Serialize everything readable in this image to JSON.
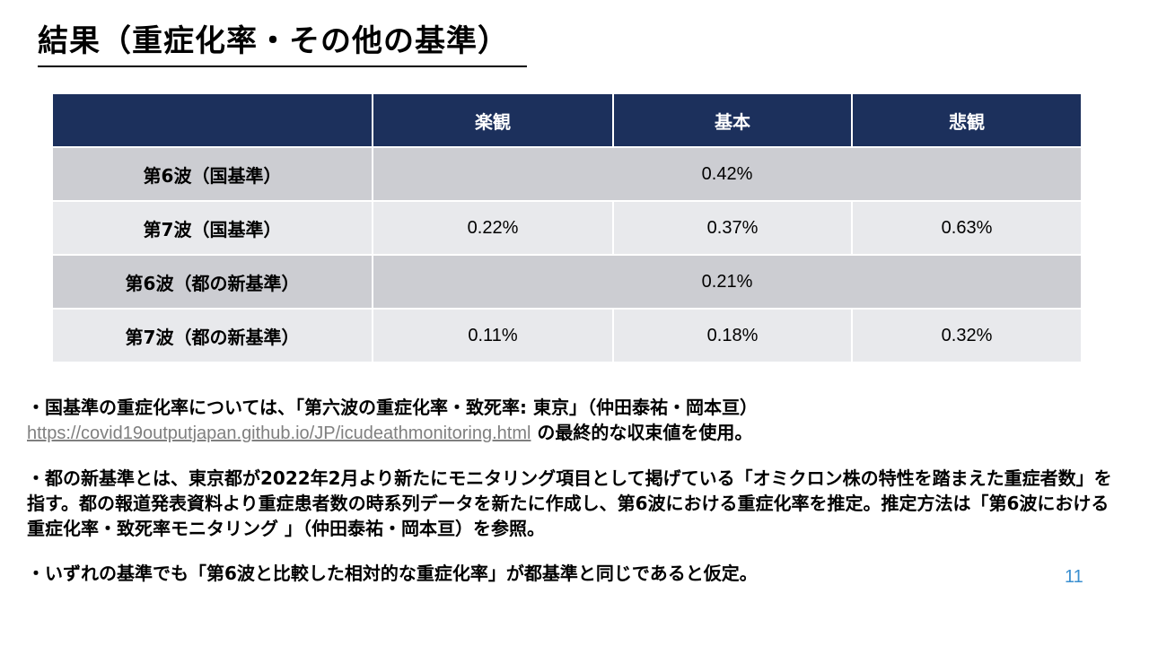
{
  "title": "結果（重症化率・その他の基準）",
  "table": {
    "headers": [
      "",
      "楽観",
      "基本",
      "悲観"
    ],
    "rows": [
      {
        "label": "第6波（国基準）",
        "merged": true,
        "value": "0.42%"
      },
      {
        "label": "第7波（国基準）",
        "merged": false,
        "values": [
          "0.22%",
          "0.37%",
          "0.63%"
        ]
      },
      {
        "label": "第6波（都の新基準）",
        "merged": true,
        "value": "0.21%"
      },
      {
        "label": "第7波（都の新基準）",
        "merged": false,
        "values": [
          "0.11%",
          "0.18%",
          "0.32%"
        ]
      }
    ]
  },
  "notes": {
    "note1_text": "・国基準の重症化率については、「第六波の重症化率・致死率: 東京」（仲田泰祐・岡本亘）",
    "note1_link": "https://covid19outputjapan.github.io/JP/icudeathmonitoring.html",
    "note1_suffix": " の最終的な収束値を使用。",
    "note2": "・都の新基準とは、東京都が2022年2月より新たにモニタリング項目として掲げている「オミクロン株の特性を踏まえた重症者数」を指す。都の報道発表資料より重症患者数の時系列データを新たに作成し、第6波における重症化率を推定。推定方法は「第6波における重症化率・致死率モニタリング 」（仲田泰祐・岡本亘）を参照。",
    "note3": "・いずれの基準でも「第6波と比較した相対的な重症化率」が都基準と同じであると仮定。"
  },
  "page_number": "11",
  "colors": {
    "header_bg": "#1c305c",
    "row_dark": "#cccdd2",
    "row_light": "#e8e9ec",
    "page_number": "#3a8fd0",
    "link": "#7f7f7f"
  }
}
